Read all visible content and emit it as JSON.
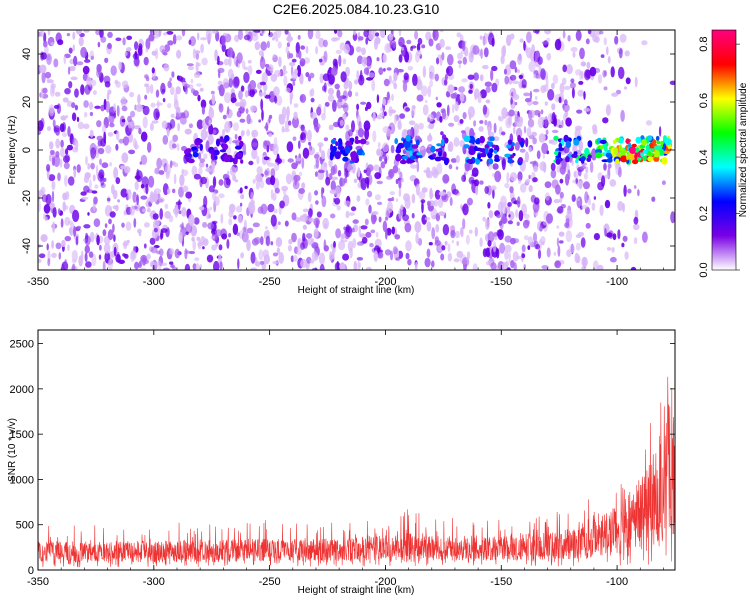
{
  "title": "C2E6.2025.084.10.23.G10",
  "chart_data": [
    {
      "type": "heatmap",
      "title": "",
      "xlabel": "Height of straight line (km)",
      "ylabel": "Frequency (Hz)",
      "xlim": [
        -350,
        -75
      ],
      "ylim": [
        -50,
        50
      ],
      "xticks": [
        -350,
        -300,
        -250,
        -200,
        -150,
        -100
      ],
      "xtick_labels": [
        "-350",
        "-300",
        "-250",
        "-200",
        "-150",
        "-100"
      ],
      "yticks": [
        -40,
        -20,
        0,
        20,
        40
      ],
      "ytick_labels": [
        "-40",
        "-20",
        "0",
        "20",
        "40"
      ],
      "colorbar": {
        "label": "Normalized spectral amplitude",
        "range": [
          0,
          0.85
        ],
        "ticks": [
          0.0,
          0.2,
          0.4,
          0.6,
          0.8
        ],
        "tick_labels": [
          "0.0",
          "0.2",
          "0.4",
          "0.6",
          "0.8"
        ],
        "colormap": [
          "#ffffff",
          "#7a00e6",
          "#0000ff",
          "#00ffff",
          "#00ff00",
          "#ffff00",
          "#ff0000",
          "#ff0080"
        ]
      },
      "signal_band": {
        "frequency_center": 0,
        "frequency_halfwidth": 5,
        "clusters": [
          {
            "x": -283,
            "amplitude": 0.25
          },
          {
            "x": -272,
            "amplitude": 0.22
          },
          {
            "x": -265,
            "amplitude": 0.2
          },
          {
            "x": -220,
            "amplitude": 0.3
          },
          {
            "x": -213,
            "amplitude": 0.28
          },
          {
            "x": -192,
            "amplitude": 0.35
          },
          {
            "x": -188,
            "amplitude": 0.32
          },
          {
            "x": -177,
            "amplitude": 0.3
          },
          {
            "x": -163,
            "amplitude": 0.32
          },
          {
            "x": -155,
            "amplitude": 0.3
          },
          {
            "x": -144,
            "amplitude": 0.3
          },
          {
            "x": -123,
            "amplitude": 0.4
          },
          {
            "x": -115,
            "amplitude": 0.45
          },
          {
            "x": -105,
            "amplitude": 0.55
          },
          {
            "x": -98,
            "amplitude": 0.7
          },
          {
            "x": -92,
            "amplitude": 0.8
          },
          {
            "x": -86,
            "amplitude": 0.75
          },
          {
            "x": -80,
            "amplitude": 0.65
          }
        ]
      },
      "noise_density_to_x": -100
    },
    {
      "type": "line",
      "title": "",
      "xlabel": "Height of straight line (km)",
      "ylabel": "SNR (10 * v/v)",
      "xlim": [
        -350,
        -75
      ],
      "ylim": [
        0,
        2650
      ],
      "xticks": [
        -350,
        -300,
        -250,
        -200,
        -150,
        -100
      ],
      "xtick_labels": [
        "-350",
        "-300",
        "-250",
        "-200",
        "-150",
        "-100"
      ],
      "yticks": [
        0,
        500,
        1000,
        1500,
        2000,
        2500
      ],
      "ytick_labels": [
        "0",
        "500",
        "1000",
        "1500",
        "2000",
        "2500"
      ],
      "series_color": "#ee3333",
      "envelope": {
        "x": [
          -350,
          -325,
          -300,
          -275,
          -265,
          -250,
          -225,
          -200,
          -190,
          -175,
          -150,
          -130,
          -120,
          -110,
          -100,
          -95,
          -90,
          -85,
          -80,
          -77,
          -75
        ],
        "lower": [
          30,
          30,
          30,
          30,
          30,
          40,
          40,
          40,
          40,
          40,
          40,
          40,
          40,
          40,
          40,
          40,
          40,
          40,
          40,
          40,
          40
        ],
        "typical": [
          250,
          240,
          250,
          260,
          270,
          260,
          270,
          300,
          320,
          300,
          290,
          320,
          350,
          420,
          550,
          650,
          800,
          900,
          1100,
          1500,
          1600
        ],
        "upper": [
          520,
          500,
          520,
          540,
          580,
          560,
          580,
          600,
          680,
          600,
          580,
          620,
          700,
          850,
          1050,
          1300,
          1500,
          1700,
          2050,
          2300,
          2620
        ]
      }
    }
  ]
}
